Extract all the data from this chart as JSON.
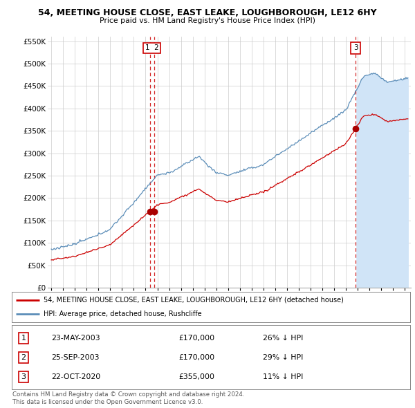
{
  "title": "54, MEETING HOUSE CLOSE, EAST LEAKE, LOUGHBOROUGH, LE12 6HY",
  "subtitle": "Price paid vs. HM Land Registry's House Price Index (HPI)",
  "ylim": [
    0,
    560000
  ],
  "yticks": [
    0,
    50000,
    100000,
    150000,
    200000,
    250000,
    300000,
    350000,
    400000,
    450000,
    500000,
    550000
  ],
  "ytick_labels": [
    "£0",
    "£50K",
    "£100K",
    "£150K",
    "£200K",
    "£250K",
    "£300K",
    "£350K",
    "£400K",
    "£450K",
    "£500K",
    "£550K"
  ],
  "hpi_color": "#5b8db8",
  "price_color": "#cc0000",
  "sale_color": "#aa0000",
  "transactions": [
    {
      "num": 1,
      "date": "23-MAY-2003",
      "price": 170000,
      "pct_hpi": "26% ↓ HPI",
      "x_year": 2003.38
    },
    {
      "num": 2,
      "date": "25-SEP-2003",
      "price": 170000,
      "pct_hpi": "29% ↓ HPI",
      "x_year": 2003.73
    },
    {
      "num": 3,
      "date": "22-OCT-2020",
      "price": 355000,
      "pct_hpi": "11% ↓ HPI",
      "x_year": 2020.81
    }
  ],
  "legend_label_price": "54, MEETING HOUSE CLOSE, EAST LEAKE, LOUGHBOROUGH, LE12 6HY (detached house)",
  "legend_label_hpi": "HPI: Average price, detached house, Rushcliffe",
  "footer1": "Contains HM Land Registry data © Crown copyright and database right 2024.",
  "footer2": "This data is licensed under the Open Government Licence v3.0.",
  "fill_start_year": 2020.81,
  "fill_color": "#d0e4f7",
  "xlim_left": 1994.7,
  "xlim_right": 2025.5
}
